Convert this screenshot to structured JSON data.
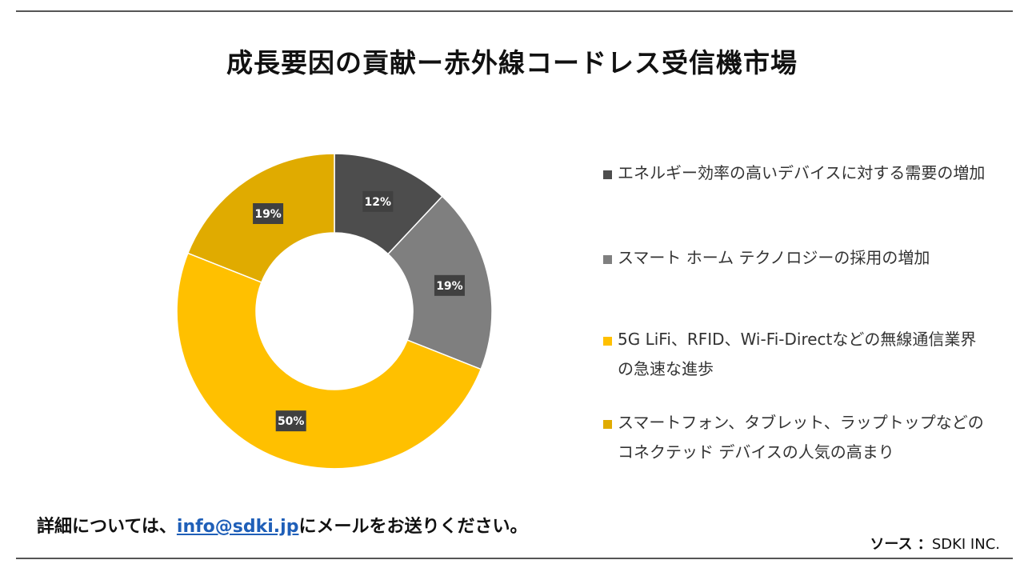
{
  "title": "成長要因の貢献ー赤外線コードレス受信機市場",
  "chart_data": {
    "type": "donut",
    "slices": [
      {
        "label": "エネルギー効率の高いデバイスに対する需要の増加",
        "value": 12,
        "display": "12%",
        "color": "#4d4d4d"
      },
      {
        "label": "スマート ホーム テクノロジーの採用の増加",
        "value": 19,
        "display": "19%",
        "color": "#7f7f7f"
      },
      {
        "label": "5G LiFi、RFID、Wi-Fi-Directなどの無線通信業界の急速な進歩",
        "value": 50,
        "display": "50%",
        "color": "#ffc000"
      },
      {
        "label": "スマートフォン、タブレット、ラップトップなどのコネクテッド デバイスの人気の高まり",
        "value": 19,
        "display": "19%",
        "color": "#e0ab00"
      }
    ],
    "legend_position": "right"
  },
  "footer": {
    "prefix": "詳細については、",
    "email": "info@sdki.jp",
    "suffix": "にメールをお送りください。"
  },
  "source": {
    "label": "ソース ：",
    "value": "SDKI INC."
  }
}
